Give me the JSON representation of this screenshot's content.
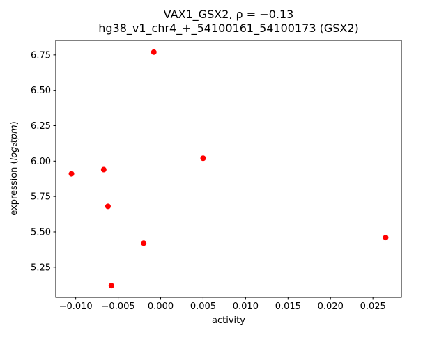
{
  "chart_data": {
    "type": "scatter",
    "title_line1": "VAX1_GSX2, ρ = −0.13",
    "title_line2": "hg38_v1_chr4_+_54100161_54100173 (GSX2)",
    "xlabel": "activity",
    "ylabel": "expression (log₂tpm)",
    "ylabel_parts": {
      "prefix": "expression (",
      "math": "log₂tpm",
      "suffix": ")"
    },
    "marker_color": "#ff0000",
    "points": [
      [
        -0.0105,
        5.91
      ],
      [
        -0.0067,
        5.94
      ],
      [
        -0.0062,
        5.68
      ],
      [
        -0.0058,
        5.12
      ],
      [
        -0.002,
        5.42
      ],
      [
        -0.0008,
        6.77
      ],
      [
        0.005,
        6.02
      ],
      [
        0.0265,
        5.46
      ]
    ],
    "x_ticks": {
      "values": [
        -0.01,
        -0.005,
        0.0,
        0.005,
        0.01,
        0.015,
        0.02,
        0.025
      ],
      "labels": [
        "−0.010",
        "−0.005",
        "0.000",
        "0.005",
        "0.010",
        "0.015",
        "0.020",
        "0.025"
      ]
    },
    "y_ticks": {
      "values": [
        5.25,
        5.5,
        5.75,
        6.0,
        6.25,
        6.5,
        6.75
      ],
      "labels": [
        "5.25",
        "5.50",
        "5.75",
        "6.00",
        "6.25",
        "6.50",
        "6.75"
      ]
    },
    "xlim": [
      -0.01235,
      0.02835
    ],
    "ylim": [
      5.0375,
      6.8525
    ],
    "grid": false,
    "legend": "none"
  }
}
